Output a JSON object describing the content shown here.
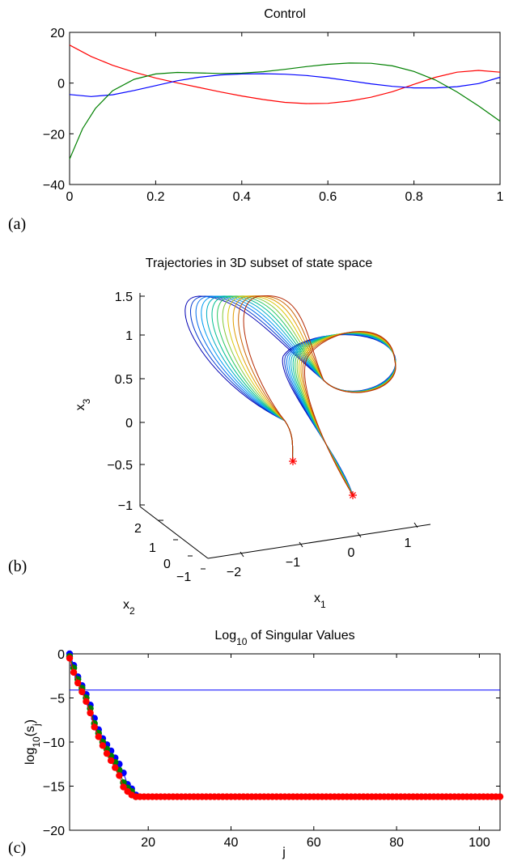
{
  "chart_data": [
    {
      "type": "line",
      "panel_label": "(a)",
      "title": "Control",
      "xlabel": "",
      "ylabel": "",
      "xlim": [
        0,
        1
      ],
      "ylim": [
        -40,
        20
      ],
      "xticks": [
        "0",
        "0.2",
        "0.4",
        "0.6",
        "0.8",
        "1"
      ],
      "yticks": [
        "20",
        "0",
        "−20",
        "−40"
      ],
      "grid": false,
      "series": [
        {
          "color": "#ff0000",
          "x": [
            0,
            0.05,
            0.1,
            0.15,
            0.2,
            0.25,
            0.3,
            0.35,
            0.4,
            0.45,
            0.5,
            0.55,
            0.6,
            0.65,
            0.7,
            0.75,
            0.8,
            0.85,
            0.9,
            0.95,
            1.0
          ],
          "y": [
            15,
            10.5,
            7,
            4.3,
            2,
            0.1,
            -1.7,
            -3.5,
            -5.1,
            -6.5,
            -7.6,
            -8.1,
            -8.0,
            -7.1,
            -5.6,
            -3.4,
            -0.5,
            2.3,
            4.3,
            5.0,
            4.3
          ]
        },
        {
          "color": "#0000ff",
          "x": [
            0,
            0.05,
            0.1,
            0.15,
            0.2,
            0.25,
            0.3,
            0.35,
            0.4,
            0.45,
            0.5,
            0.55,
            0.6,
            0.65,
            0.7,
            0.75,
            0.8,
            0.85,
            0.9,
            0.95,
            1.0
          ],
          "y": [
            -4.5,
            -5.3,
            -4.6,
            -2.9,
            -1,
            0.9,
            2.3,
            3.2,
            3.6,
            3.7,
            3.5,
            3.0,
            2.1,
            0.9,
            -0.3,
            -1.3,
            -1.9,
            -1.9,
            -1.4,
            -0.2,
            2.3
          ]
        },
        {
          "color": "#008000",
          "x": [
            0,
            0.03,
            0.06,
            0.1,
            0.15,
            0.2,
            0.25,
            0.3,
            0.35,
            0.4,
            0.45,
            0.5,
            0.55,
            0.6,
            0.65,
            0.7,
            0.75,
            0.8,
            0.85,
            0.9,
            0.95,
            1.0
          ],
          "y": [
            -30,
            -18,
            -10,
            -3,
            1.5,
            3.6,
            4.2,
            4.0,
            3.8,
            3.9,
            4.5,
            5.4,
            6.5,
            7.4,
            7.9,
            7.8,
            6.8,
            4.6,
            1.2,
            -3.5,
            -9,
            -15
          ]
        }
      ]
    },
    {
      "type": "line3d",
      "panel_label": "(b)",
      "title": "Trajectories in 3D subset of state space",
      "xlabel": "x1",
      "ylabel": "x2",
      "zlabel": "x3",
      "xlim": [
        -2.5,
        1.5
      ],
      "ylim": [
        -1,
        3
      ],
      "zlim": [
        -1.2,
        1.5
      ],
      "xticks": [
        "−2",
        "−1",
        "0",
        "1"
      ],
      "yticks": [
        "2",
        "1",
        "0",
        "−1"
      ],
      "zticks": [
        "1.5",
        "1",
        "0.5",
        "0",
        "−0.5",
        "−1"
      ],
      "grid": false,
      "marker_color": "#ff0000",
      "n_trajectories": 12
    },
    {
      "type": "scatter",
      "panel_label": "(c)",
      "title": "Log",
      "title_sub": "10",
      "title_rest": " of Singular Values",
      "xlabel": "j",
      "ylabel_main": "log",
      "ylabel_sub1": "10",
      "ylabel_mid": "(s",
      "ylabel_sub2": "j",
      "ylabel_end": ")",
      "xlim": [
        1,
        105
      ],
      "ylim": [
        -20,
        0
      ],
      "xticks": [
        "20",
        "40",
        "60",
        "80",
        "100"
      ],
      "yticks": [
        "0",
        "−5",
        "−10",
        "−15",
        "−20"
      ],
      "hline_y": -4.1,
      "grid": false,
      "series": [
        {
          "color": "#0000ff",
          "x": [
            1,
            2,
            3,
            4,
            5,
            6,
            7,
            8,
            9,
            10,
            11,
            12,
            13,
            14,
            15,
            16,
            17
          ],
          "y": [
            0,
            -1.3,
            -2.6,
            -3.6,
            -4.6,
            -5.8,
            -7.3,
            -8.6,
            -9.6,
            -10.3,
            -11.0,
            -11.8,
            -12.5,
            -13.5,
            -14.8,
            -15.3,
            -16.0
          ]
        },
        {
          "color": "#008000",
          "x": [
            1,
            2,
            3,
            4,
            5,
            6,
            7,
            8,
            9,
            10,
            11,
            12,
            13,
            14,
            15,
            16,
            17
          ],
          "y": [
            -0.3,
            -1.6,
            -2.9,
            -3.9,
            -5.0,
            -6.2,
            -7.9,
            -9.0,
            -10.0,
            -10.8,
            -11.6,
            -12.3,
            -13.2,
            -14.6,
            -15.2,
            -15.6,
            -16.2
          ]
        },
        {
          "color": "#ff0000",
          "x": [
            1,
            2,
            3,
            4,
            5,
            6,
            7,
            8,
            9,
            10,
            11,
            12,
            13,
            14,
            15,
            16,
            17
          ],
          "y": [
            -0.5,
            -2.1,
            -3.3,
            -4.3,
            -5.4,
            -6.7,
            -8.3,
            -9.4,
            -10.4,
            -11.3,
            -12.1,
            -12.9,
            -13.8,
            -15.1,
            -15.6,
            -16.0,
            -16.2
          ],
          "plateau_value": -16.2,
          "plateau_to": 105
        }
      ]
    }
  ]
}
